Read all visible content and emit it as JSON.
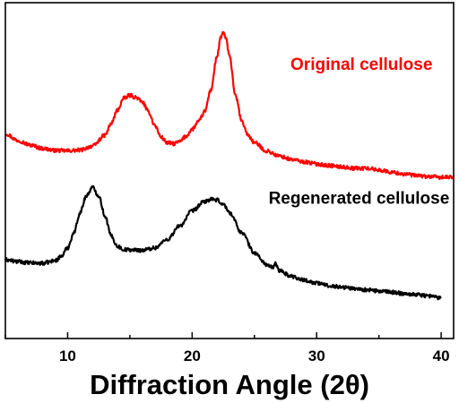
{
  "chart_data": {
    "type": "line",
    "title": "",
    "xlabel": "Diffraction Angle (2θ)",
    "ylabel": "",
    "xlim": [
      5,
      41
    ],
    "ylim": [
      0,
      100
    ],
    "x_ticks": [
      10,
      20,
      30,
      40
    ],
    "y_ticks": [],
    "grid": false,
    "legend": "inline labels",
    "series": [
      {
        "name": "Original cellulose",
        "color": "#ff0000",
        "label_anchor": [
          33.6,
          80
        ],
        "points": [
          [
            5,
            61
          ],
          [
            6,
            59
          ],
          [
            7,
            57.6
          ],
          [
            8,
            56.6
          ],
          [
            9,
            56
          ],
          [
            10,
            55.9
          ],
          [
            11,
            56.1
          ],
          [
            12,
            57.3
          ],
          [
            13,
            60.5
          ],
          [
            13.5,
            64
          ],
          [
            14,
            68
          ],
          [
            14.5,
            71.5
          ],
          [
            15,
            72.4
          ],
          [
            15.5,
            71.8
          ],
          [
            16,
            70.4
          ],
          [
            16.5,
            67.5
          ],
          [
            17,
            63.5
          ],
          [
            17.5,
            60
          ],
          [
            18,
            58.3
          ],
          [
            18.5,
            58
          ],
          [
            19,
            58.6
          ],
          [
            19.5,
            60.2
          ],
          [
            20,
            62.3
          ],
          [
            20.5,
            64.5
          ],
          [
            21,
            67.5
          ],
          [
            21.5,
            74
          ],
          [
            22,
            84
          ],
          [
            22.3,
            89.5
          ],
          [
            22.5,
            91.2
          ],
          [
            22.7,
            89.5
          ],
          [
            23,
            84
          ],
          [
            23.5,
            72
          ],
          [
            24,
            64.5
          ],
          [
            24.5,
            60.5
          ],
          [
            25,
            58.3
          ],
          [
            26,
            55.8
          ],
          [
            27,
            54.3
          ],
          [
            28,
            53.3
          ],
          [
            29,
            52.6
          ],
          [
            30,
            52
          ],
          [
            31,
            51.5
          ],
          [
            32,
            51.1
          ],
          [
            33,
            50.7
          ],
          [
            34,
            50.7
          ],
          [
            35,
            50.2
          ],
          [
            36,
            49.5
          ],
          [
            37,
            49
          ],
          [
            38,
            48.5
          ],
          [
            39,
            48.2
          ],
          [
            40,
            48
          ],
          [
            41,
            48
          ]
        ]
      },
      {
        "name": "Regenerated cellulose",
        "color": "#000000",
        "label_anchor": [
          33.4,
          40.2
        ],
        "points": [
          [
            5,
            23.5
          ],
          [
            6,
            22.9
          ],
          [
            7,
            22.5
          ],
          [
            8,
            22.4
          ],
          [
            9,
            23.2
          ],
          [
            9.5,
            24.5
          ],
          [
            10,
            27
          ],
          [
            10.5,
            31.5
          ],
          [
            11,
            37.5
          ],
          [
            11.5,
            42.5
          ],
          [
            12,
            45
          ],
          [
            12.5,
            42.5
          ],
          [
            13,
            36.5
          ],
          [
            13.5,
            30.5
          ],
          [
            14,
            27.5
          ],
          [
            14.5,
            26.5
          ],
          [
            15,
            26.4
          ],
          [
            16,
            26.3
          ],
          [
            17,
            27
          ],
          [
            18,
            29.5
          ],
          [
            19,
            33.5
          ],
          [
            20,
            38
          ],
          [
            21,
            40.8
          ],
          [
            21.5,
            41.4
          ],
          [
            22,
            41.2
          ],
          [
            22.5,
            40
          ],
          [
            23,
            37.5
          ],
          [
            24,
            31.5
          ],
          [
            25,
            25.5
          ],
          [
            26,
            22
          ],
          [
            26.5,
            21
          ],
          [
            26.7,
            22.3
          ],
          [
            27,
            20.2
          ],
          [
            28,
            18.5
          ],
          [
            29,
            17.4
          ],
          [
            30,
            16.5
          ],
          [
            31,
            15.8
          ],
          [
            32,
            15.3
          ],
          [
            33,
            14.9
          ],
          [
            34,
            14.5
          ],
          [
            35,
            14.1
          ],
          [
            36,
            13.8
          ],
          [
            37,
            13.4
          ],
          [
            38,
            13.1
          ],
          [
            39,
            12.7
          ],
          [
            40,
            12.1
          ]
        ]
      }
    ]
  }
}
